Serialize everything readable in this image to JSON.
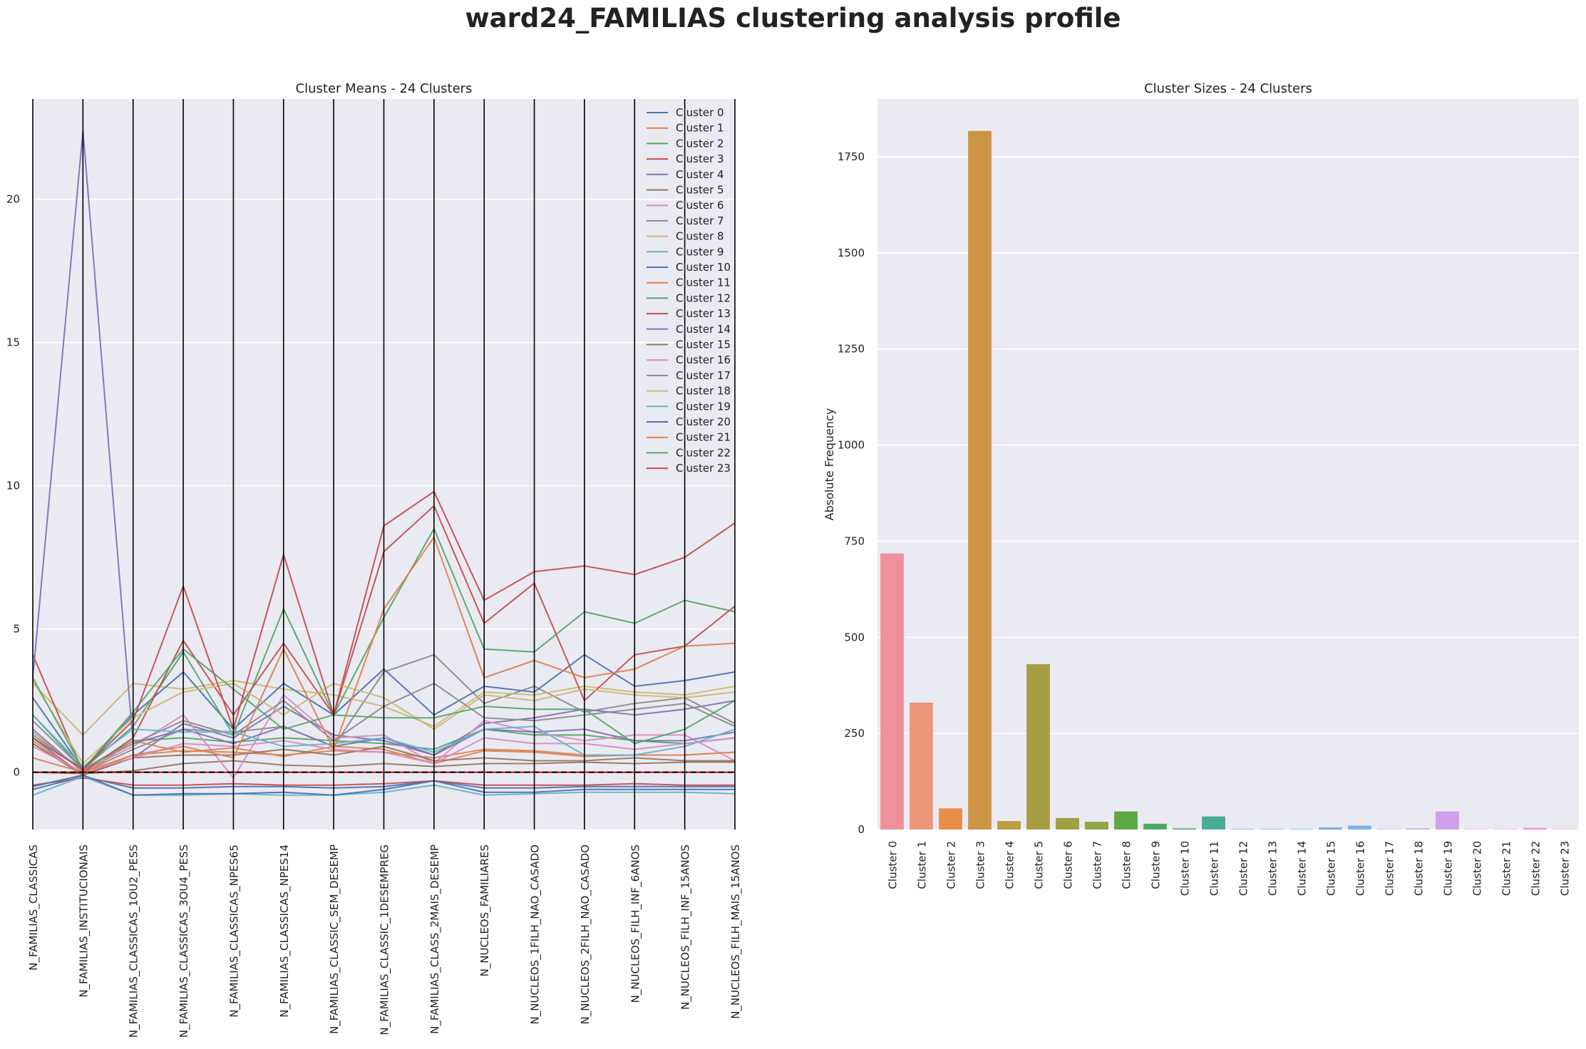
{
  "suptitle": "ward24_FAMILIAS clustering analysis profile",
  "colors": {
    "background": "#eaeaf2",
    "grid": "#ffffff",
    "axis_vline": "#000000",
    "zero_line": "#cc0000",
    "series_palette": [
      "#4c72b0",
      "#dd8452",
      "#55a868",
      "#c44e52",
      "#8172b3",
      "#937860",
      "#da8bc3",
      "#8c8c8c",
      "#ccb974",
      "#64b5cd"
    ],
    "bar_palette": [
      "#f0909c",
      "#ec9577",
      "#e88e47",
      "#cc9545",
      "#bd9d43",
      "#a99d43",
      "#a19f42",
      "#8fa642",
      "#5ea845",
      "#4caa5f",
      "#49ab86",
      "#4aad98",
      "#4bada9",
      "#4db0b8",
      "#55b2c9",
      "#60b0e0",
      "#7ab1e8",
      "#9eb0ed",
      "#c2aaef",
      "#d29fec",
      "#e594e5",
      "#ee8fdb",
      "#f28fc7",
      "#f393b0"
    ]
  },
  "chart_data": [
    {
      "type": "line",
      "title": "Cluster Means - 24 Clusters",
      "xlabel": "",
      "ylabel": "",
      "ylim": [
        -2,
        23.5
      ],
      "yticks": [
        0,
        5,
        10,
        15,
        20
      ],
      "grid": true,
      "legend": "top-right",
      "categories": [
        "N_FAMILIAS_CLASSICAS",
        "N_FAMILIAS_INSTITUCIONAIS",
        "N_FAMILIAS_CLASSICAS_1OU2_PESS",
        "N_FAMILIAS_CLASSICAS_3OU4_PESS",
        "N_FAMILIAS_CLASSICAS_NPES65",
        "N_FAMILIAS_CLASSICAS_NPES14",
        "N_FAMILIAS_CLASSIC_SEM_DESEMP",
        "N_FAMILIAS_CLASSIC_1DESEMPREG",
        "N_FAMILIAS_CLASS_2MAIS_DESEMP",
        "N_NUCLEOS_FAMILIARES",
        "N_NUCLEOS_1FILH_NAO_CASADO",
        "N_NUCLEOS_2FILH_NAO_CASADO",
        "N_NUCLEOS_FILH_INF_6ANOS",
        "N_NUCLEOS_FILH_INF_15ANOS",
        "N_NUCLEOS_FILH_MAIS_15ANOS"
      ],
      "series": [
        {
          "name": "Cluster 0",
          "values": [
            -0.6,
            -0.15,
            -0.55,
            -0.55,
            -0.5,
            -0.5,
            -0.55,
            -0.5,
            -0.3,
            -0.55,
            -0.55,
            -0.5,
            -0.5,
            -0.5,
            -0.5
          ]
        },
        {
          "name": "Cluster 1",
          "values": [
            1.0,
            -0.1,
            0.6,
            0.75,
            0.7,
            0.6,
            0.75,
            0.7,
            0.5,
            0.8,
            0.75,
            0.6,
            0.6,
            0.6,
            0.7
          ]
        },
        {
          "name": "Cluster 2",
          "values": [
            1.3,
            0.1,
            1.1,
            1.2,
            1.05,
            1.2,
            1.1,
            1.0,
            0.8,
            1.5,
            1.3,
            1.3,
            1.1,
            1.0,
            1.2
          ]
        },
        {
          "name": "Cluster 3",
          "values": [
            -0.45,
            -0.2,
            -0.45,
            -0.45,
            -0.4,
            -0.45,
            -0.45,
            -0.4,
            -0.3,
            -0.45,
            -0.45,
            -0.45,
            -0.4,
            -0.45,
            -0.45
          ]
        },
        {
          "name": "Cluster 4",
          "values": [
            1.2,
            -0.1,
            0.5,
            1.7,
            1.2,
            2.3,
            1.3,
            1.1,
            0.6,
            1.7,
            1.9,
            2.2,
            2.0,
            2.2,
            2.5
          ]
        },
        {
          "name": "Cluster 5",
          "values": [
            0.0,
            -0.05,
            0.05,
            0.3,
            0.4,
            0.25,
            0.2,
            0.3,
            0.2,
            0.3,
            0.3,
            0.35,
            0.3,
            0.35,
            0.35
          ]
        },
        {
          "name": "Cluster 6",
          "values": [
            1.4,
            0.05,
            0.9,
            2.0,
            -0.2,
            2.7,
            1.2,
            1.3,
            0.3,
            1.8,
            1.4,
            1.1,
            1.3,
            1.3,
            0.4
          ]
        },
        {
          "name": "Cluster 7",
          "values": [
            1.5,
            0.0,
            0.8,
            1.5,
            1.4,
            1.6,
            0.9,
            3.5,
            4.1,
            2.4,
            3.0,
            2.1,
            2.4,
            2.6,
            1.7
          ]
        },
        {
          "name": "Cluster 8",
          "values": [
            3.1,
            1.3,
            3.1,
            2.9,
            3.2,
            2.9,
            2.7,
            2.3,
            1.6,
            2.8,
            2.7,
            3.0,
            2.8,
            2.7,
            3.0
          ]
        },
        {
          "name": "Cluster 9",
          "values": [
            -0.8,
            -0.15,
            -0.8,
            -0.8,
            -0.75,
            -0.8,
            -0.8,
            -0.7,
            -0.45,
            -0.8,
            -0.75,
            -0.7,
            -0.7,
            -0.7,
            -0.75
          ]
        },
        {
          "name": "Cluster 10",
          "values": [
            2.6,
            0.1,
            2.0,
            3.5,
            1.5,
            3.1,
            2.0,
            3.6,
            2.0,
            3.0,
            2.8,
            4.1,
            3.0,
            3.2,
            3.5
          ]
        },
        {
          "name": "Cluster 11",
          "values": [
            1.1,
            -0.1,
            1.1,
            0.7,
            0.85,
            0.55,
            0.9,
            0.8,
            0.3,
            0.75,
            0.7,
            0.55,
            0.6,
            0.6,
            0.7
          ]
        },
        {
          "name": "Cluster 12",
          "values": [
            2.0,
            0.1,
            1.6,
            4.2,
            1.3,
            5.7,
            2.0,
            5.4,
            8.5,
            4.3,
            4.2,
            5.6,
            5.2,
            6.0,
            5.6
          ]
        },
        {
          "name": "Cluster 13",
          "values": [
            4.1,
            0.0,
            1.2,
            4.6,
            2.0,
            4.5,
            2.0,
            7.7,
            9.3,
            5.2,
            6.6,
            2.5,
            4.1,
            4.4,
            5.8
          ]
        },
        {
          "name": "Cluster 14",
          "values": [
            3.3,
            22.4,
            1.0,
            1.5,
            1.0,
            1.6,
            0.9,
            1.2,
            0.6,
            1.5,
            1.4,
            1.5,
            1.1,
            1.1,
            1.4
          ]
        },
        {
          "name": "Cluster 15",
          "values": [
            1.0,
            -0.1,
            0.5,
            0.6,
            0.6,
            0.8,
            0.6,
            0.9,
            0.4,
            0.5,
            0.4,
            0.4,
            0.5,
            0.4,
            0.4
          ]
        },
        {
          "name": "Cluster 16",
          "values": [
            0.9,
            0.0,
            0.5,
            1.0,
            0.9,
            1.1,
            0.8,
            0.7,
            0.3,
            1.2,
            1.0,
            1.0,
            0.8,
            1.0,
            1.2
          ]
        },
        {
          "name": "Cluster 17",
          "values": [
            1.8,
            0.1,
            1.0,
            1.8,
            1.3,
            2.5,
            1.1,
            2.3,
            3.1,
            1.9,
            1.8,
            2.0,
            2.2,
            2.4,
            1.6
          ]
        },
        {
          "name": "Cluster 18",
          "values": [
            3.2,
            0.3,
            1.9,
            2.8,
            3.1,
            2.0,
            3.1,
            2.6,
            1.5,
            2.7,
            2.5,
            2.9,
            2.7,
            2.6,
            2.8
          ]
        },
        {
          "name": "Cluster 19",
          "values": [
            2.0,
            0.2,
            1.5,
            1.4,
            1.4,
            0.9,
            1.0,
            1.2,
            0.7,
            1.5,
            1.6,
            0.6,
            0.6,
            0.9,
            1.5
          ]
        },
        {
          "name": "Cluster 20",
          "values": [
            -0.5,
            -0.1,
            -0.8,
            -0.75,
            -0.75,
            -0.7,
            -0.8,
            -0.6,
            -0.3,
            -0.7,
            -0.7,
            -0.6,
            -0.6,
            -0.6,
            -0.6
          ]
        },
        {
          "name": "Cluster 21",
          "values": [
            0.5,
            0.0,
            0.6,
            0.9,
            0.5,
            4.3,
            0.8,
            5.7,
            8.2,
            3.3,
            3.9,
            3.3,
            3.6,
            4.4,
            4.5
          ]
        },
        {
          "name": "Cluster 22",
          "values": [
            3.3,
            0.1,
            2.1,
            4.3,
            2.9,
            1.5,
            2.0,
            1.9,
            1.9,
            2.3,
            2.2,
            2.2,
            1.0,
            1.5,
            2.5
          ]
        },
        {
          "name": "Cluster 23",
          "values": [
            1.2,
            0.1,
            1.8,
            6.5,
            1.5,
            7.6,
            2.0,
            8.6,
            9.8,
            6.0,
            7.0,
            7.2,
            6.9,
            7.5,
            8.7
          ]
        }
      ]
    },
    {
      "type": "bar",
      "title": "Cluster Sizes - 24 Clusters",
      "xlabel": "",
      "ylabel": "Absolute Frequency",
      "ylim": [
        0,
        1900
      ],
      "yticks": [
        0,
        250,
        500,
        750,
        1000,
        1250,
        1500,
        1750
      ],
      "grid": true,
      "categories": [
        "Cluster 0",
        "Cluster 1",
        "Cluster 2",
        "Cluster 3",
        "Cluster 4",
        "Cluster 5",
        "Cluster 6",
        "Cluster 7",
        "Cluster 8",
        "Cluster 9",
        "Cluster 10",
        "Cluster 11",
        "Cluster 12",
        "Cluster 13",
        "Cluster 14",
        "Cluster 15",
        "Cluster 16",
        "Cluster 17",
        "Cluster 18",
        "Cluster 19",
        "Cluster 20",
        "Cluster 21",
        "Cluster 22",
        "Cluster 23"
      ],
      "values": [
        718,
        330,
        55,
        1817,
        22,
        430,
        30,
        20,
        47,
        15,
        3,
        34,
        1,
        1,
        1,
        5,
        10,
        1,
        3,
        47,
        1,
        1,
        4,
        1
      ]
    }
  ]
}
